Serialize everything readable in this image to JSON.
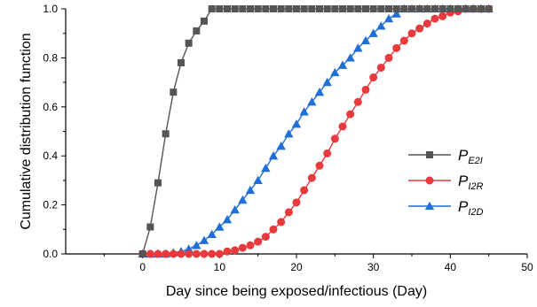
{
  "chart_data": {
    "type": "line",
    "xlabel": "Day since being exposed/infectious (Day)",
    "ylabel": "Cumulative distribution function",
    "xlim": [
      -10,
      50
    ],
    "ylim": [
      0,
      1.0
    ],
    "x_ticks": [
      0,
      10,
      20,
      30,
      40,
      50
    ],
    "y_ticks": [
      0.0,
      0.2,
      0.4,
      0.6,
      0.8,
      1.0
    ],
    "x_tick_labels": [
      "0",
      "10",
      "20",
      "30",
      "40",
      "50"
    ],
    "y_tick_labels": [
      "0.0",
      "0.2",
      "0.4",
      "0.6",
      "0.8",
      "1.0"
    ],
    "legend_position": "center-right",
    "series": [
      {
        "name": "P_E2I",
        "legend_main": "P",
        "legend_sub": "E2I",
        "color": "#555555",
        "marker": "square",
        "x": [
          0,
          1,
          2,
          3,
          4,
          5,
          6,
          7,
          8,
          9,
          10,
          11,
          12,
          13,
          14,
          15,
          16,
          17,
          18,
          19,
          20,
          21,
          22,
          23,
          24,
          25,
          26,
          27,
          28,
          29,
          30,
          31,
          32,
          33,
          34,
          35,
          36,
          37,
          38,
          39,
          40,
          41,
          42,
          43,
          44,
          45
        ],
        "y": [
          0.0,
          0.11,
          0.29,
          0.49,
          0.66,
          0.78,
          0.86,
          0.91,
          0.95,
          1.0,
          1.0,
          1.0,
          1.0,
          1.0,
          1.0,
          1.0,
          1.0,
          1.0,
          1.0,
          1.0,
          1.0,
          1.0,
          1.0,
          1.0,
          1.0,
          1.0,
          1.0,
          1.0,
          1.0,
          1.0,
          1.0,
          1.0,
          1.0,
          1.0,
          1.0,
          1.0,
          1.0,
          1.0,
          1.0,
          1.0,
          1.0,
          1.0,
          1.0,
          1.0,
          1.0,
          1.0
        ]
      },
      {
        "name": "P_I2R",
        "legend_main": "P",
        "legend_sub": "I2R",
        "color": "#e8393d",
        "marker": "circle",
        "x": [
          0,
          1,
          2,
          3,
          4,
          5,
          6,
          7,
          8,
          9,
          10,
          11,
          12,
          13,
          14,
          15,
          16,
          17,
          18,
          19,
          20,
          21,
          22,
          23,
          24,
          25,
          26,
          27,
          28,
          29,
          30,
          31,
          32,
          33,
          34,
          35,
          36,
          37,
          38,
          39,
          40,
          41,
          42,
          43,
          44,
          45
        ],
        "y": [
          0.0,
          0.0,
          0.0,
          0.0,
          0.0,
          0.0,
          0.0,
          0.0,
          0.0,
          0.0,
          0.0,
          0.01,
          0.015,
          0.025,
          0.035,
          0.05,
          0.07,
          0.1,
          0.13,
          0.17,
          0.21,
          0.26,
          0.31,
          0.36,
          0.41,
          0.47,
          0.52,
          0.57,
          0.62,
          0.67,
          0.72,
          0.76,
          0.8,
          0.84,
          0.87,
          0.9,
          0.92,
          0.94,
          0.96,
          0.97,
          0.985,
          0.99,
          1.0,
          1.0,
          1.0,
          1.0
        ]
      },
      {
        "name": "P_I2D",
        "legend_main": "P",
        "legend_sub": "I2D",
        "color": "#1f6fd6",
        "marker": "triangle",
        "x": [
          0,
          1,
          2,
          3,
          4,
          5,
          6,
          7,
          8,
          9,
          10,
          11,
          12,
          13,
          14,
          15,
          16,
          17,
          18,
          19,
          20,
          21,
          22,
          23,
          24,
          25,
          26,
          27,
          28,
          29,
          30,
          31,
          32,
          33,
          34,
          35,
          36,
          37,
          38,
          39,
          40,
          41,
          42,
          43,
          44,
          45
        ],
        "y": [
          0.0,
          0.0,
          0.0,
          0.0,
          0.005,
          0.01,
          0.02,
          0.035,
          0.055,
          0.08,
          0.11,
          0.14,
          0.18,
          0.22,
          0.26,
          0.3,
          0.35,
          0.4,
          0.44,
          0.49,
          0.53,
          0.58,
          0.62,
          0.66,
          0.7,
          0.74,
          0.77,
          0.8,
          0.84,
          0.87,
          0.9,
          0.93,
          0.96,
          0.98,
          1.0,
          1.0,
          1.0,
          1.0,
          1.0,
          1.0,
          1.0,
          1.0,
          1.0,
          1.0,
          1.0,
          1.0
        ]
      }
    ]
  }
}
